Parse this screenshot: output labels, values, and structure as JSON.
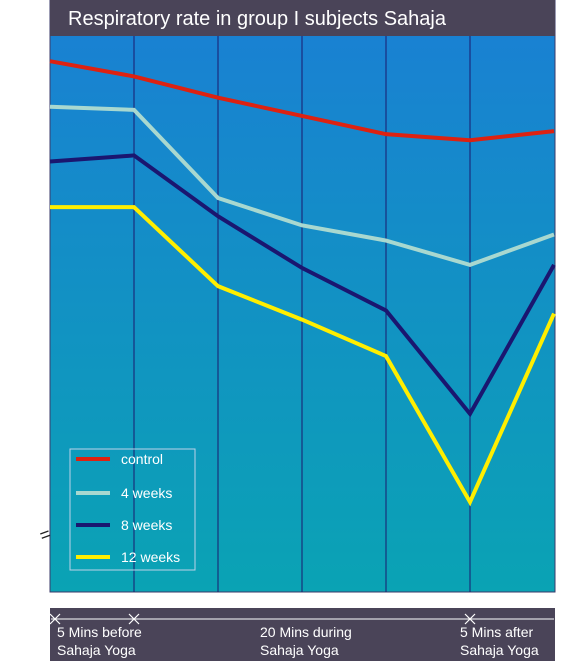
{
  "chart_data": {
    "type": "line",
    "title": "Respiratory rate  in group I subjects Sahaja",
    "x": [
      0,
      1,
      2,
      3,
      4,
      5,
      6
    ],
    "tick_labels": [
      {
        "x": 0,
        "lines": [
          "5 Mins before",
          "Sahaja Yoga"
        ]
      },
      {
        "x": 3,
        "lines": [
          "20 Mins during",
          "Sahaja Yoga"
        ]
      },
      {
        "x": 5,
        "lines": [
          "5 Mins after",
          "Sahaja Yoga"
        ]
      }
    ],
    "grid": true,
    "legend_position": "bottom-left",
    "axis_break_marker": "=",
    "series": [
      {
        "name": "control",
        "color": "#dd2211",
        "values": [
          16.0,
          15.5,
          14.8,
          14.2,
          13.6,
          13.4,
          13.7
        ]
      },
      {
        "name": "4 weeks",
        "color": "#a8d8d0",
        "values": [
          14.5,
          14.4,
          11.5,
          10.6,
          10.1,
          9.3,
          10.3
        ]
      },
      {
        "name": "8 weeks",
        "color": "#1a1670",
        "values": [
          12.7,
          12.9,
          10.9,
          9.2,
          7.8,
          4.4,
          9.3
        ]
      },
      {
        "name": "12 weeks",
        "color": "#ffee00",
        "values": [
          11.2,
          11.2,
          8.6,
          7.5,
          6.3,
          1.5,
          7.7
        ]
      }
    ]
  },
  "colors": {
    "plot_top": "#1a7fd4",
    "plot_bottom": "#0aa3b4",
    "bar": "#4a4458",
    "grid": "#1a1a6e"
  }
}
